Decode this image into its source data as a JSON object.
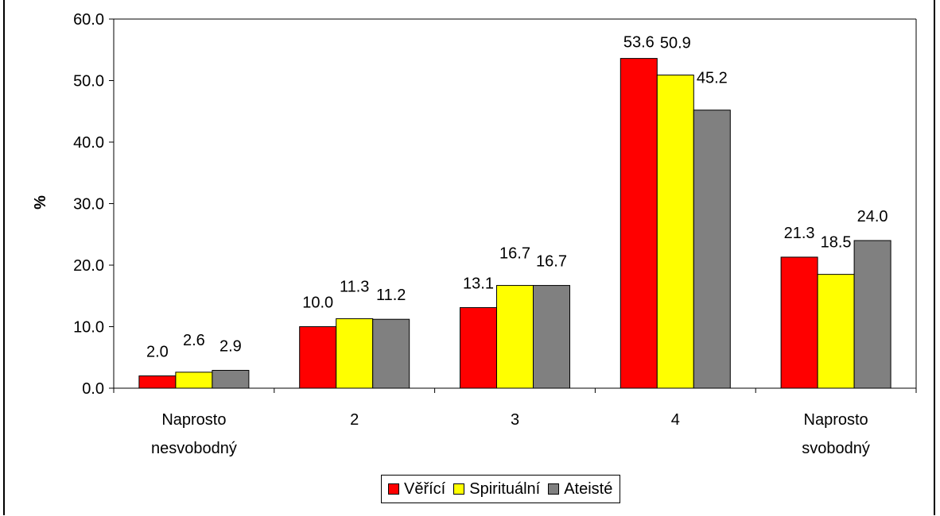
{
  "chart_data": {
    "type": "bar",
    "title": "",
    "xlabel": "",
    "ylabel": "%",
    "ylim": [
      0,
      60
    ],
    "yticks": [
      "0.0",
      "10.0",
      "20.0",
      "30.0",
      "40.0",
      "50.0",
      "60.0"
    ],
    "categories": [
      [
        "Naprosto",
        "nesvobodný"
      ],
      [
        "2"
      ],
      [
        "3"
      ],
      [
        "4"
      ],
      [
        "Naprosto",
        "svobodný"
      ]
    ],
    "series": [
      {
        "name": "Věřící",
        "color": "#ff0000",
        "values": [
          2.0,
          10.0,
          13.1,
          53.6,
          21.3
        ],
        "labels": [
          "2.0",
          "10.0",
          "13.1",
          "53.6",
          "21.3"
        ]
      },
      {
        "name": "Spirituální",
        "color": "#ffff00",
        "values": [
          2.6,
          11.3,
          16.7,
          50.9,
          18.5
        ],
        "labels": [
          "2.6",
          "11.3",
          "16.7",
          "50.9",
          "18.5"
        ]
      },
      {
        "name": "Ateisté",
        "color": "#808080",
        "values": [
          2.9,
          11.2,
          16.7,
          45.2,
          24.0
        ],
        "labels": [
          "2.9",
          "11.2",
          "16.7",
          "45.2",
          "24.0"
        ]
      }
    ],
    "grid": false,
    "legend_position": "bottom"
  }
}
